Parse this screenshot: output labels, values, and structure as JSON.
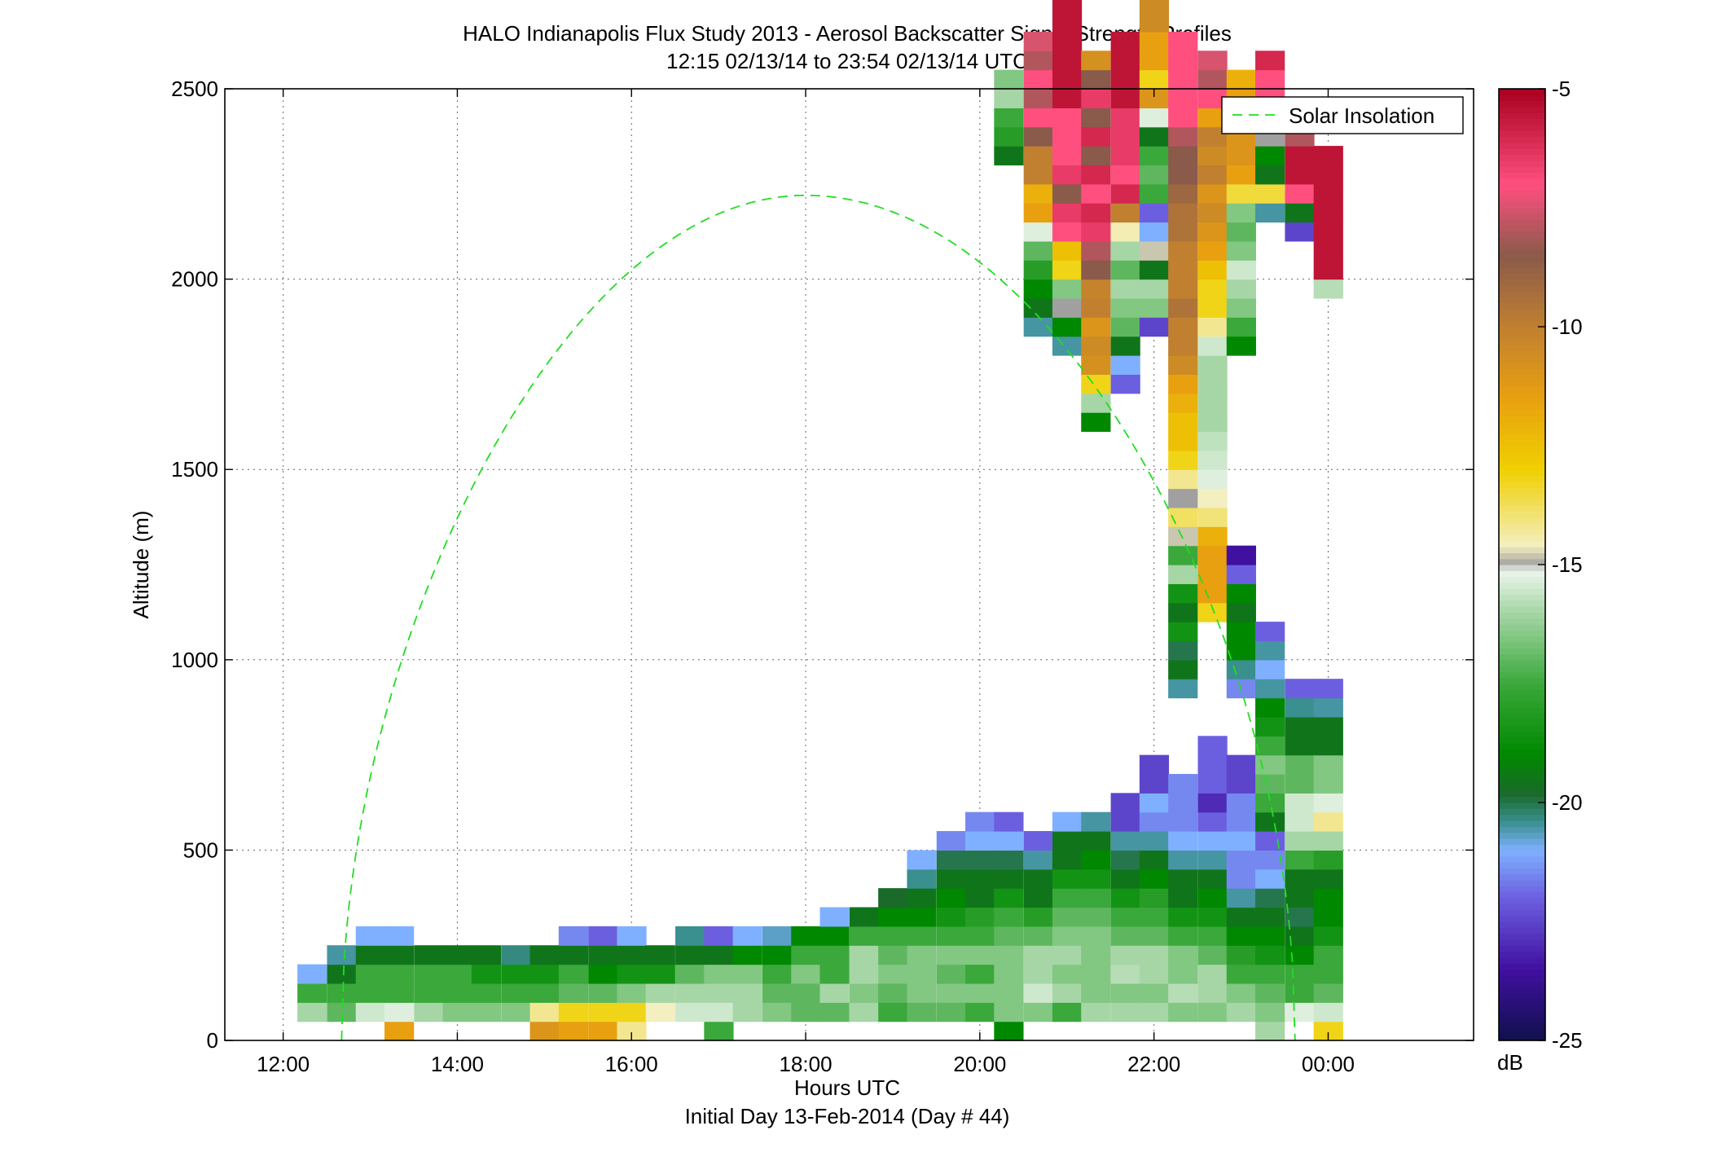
{
  "chart_data": {
    "type": "heatmap",
    "title": "HALO Indianapolis Flux Study 2013 - Aerosol Backscatter Signal Strength Profiles",
    "subtitle": "12:15 02/13/14 to 23:54 02/13/14  UTC",
    "xlabel": "Hours UTC",
    "xlabel2": "Initial Day 13-Feb-2014 (Day # 44)",
    "ylabel": "Altitude (m)",
    "x_range_hours": [
      11.33,
      25.67
    ],
    "ylim": [
      0,
      2500
    ],
    "x_ticks": [
      {
        "value": 12,
        "label": "12:00"
      },
      {
        "value": 14,
        "label": "14:00"
      },
      {
        "value": 16,
        "label": "16:00"
      },
      {
        "value": 18,
        "label": "18:00"
      },
      {
        "value": 20,
        "label": "20:00"
      },
      {
        "value": 22,
        "label": "22:00"
      },
      {
        "value": 24,
        "label": "00:00"
      }
    ],
    "y_ticks": [
      {
        "value": 0,
        "label": "0"
      },
      {
        "value": 500,
        "label": "500"
      },
      {
        "value": 1000,
        "label": "1000"
      },
      {
        "value": 1500,
        "label": "1500"
      },
      {
        "value": 2000,
        "label": "2000"
      },
      {
        "value": 2500,
        "label": "2500"
      }
    ],
    "grid": true,
    "grid_style": "dotted",
    "legend": {
      "placement": "top-right",
      "entries": [
        {
          "label": "Solar Insolation",
          "color": "#22dd22",
          "style": "dashed"
        }
      ]
    },
    "colorbar": {
      "unit": "dB",
      "range": [
        -25,
        -5
      ],
      "ticks": [
        {
          "value": -5,
          "label": "-5"
        },
        {
          "value": -10,
          "label": "-10"
        },
        {
          "value": -15,
          "label": "-15"
        },
        {
          "value": -20,
          "label": "-20"
        },
        {
          "value": -25,
          "label": "-25"
        }
      ],
      "stops": [
        {
          "value": -25,
          "color": "#10104a"
        },
        {
          "value": -23.5,
          "color": "#4010a0"
        },
        {
          "value": -22,
          "color": "#6b5fe0"
        },
        {
          "value": -21,
          "color": "#7fb0ff"
        },
        {
          "value": -20.4,
          "color": "#3a8f8f"
        },
        {
          "value": -19.8,
          "color": "#1a6a2a"
        },
        {
          "value": -19,
          "color": "#008800"
        },
        {
          "value": -17.5,
          "color": "#3aa83a"
        },
        {
          "value": -16,
          "color": "#a6d6a6"
        },
        {
          "value": -15.1,
          "color": "#eef6ee"
        },
        {
          "value": -15,
          "color": "#a0a0a0"
        },
        {
          "value": -14.6,
          "color": "#f3efc0"
        },
        {
          "value": -13,
          "color": "#f0d000"
        },
        {
          "value": -11.5,
          "color": "#e8a010"
        },
        {
          "value": -10,
          "color": "#c08030"
        },
        {
          "value": -8.5,
          "color": "#8a5a4a"
        },
        {
          "value": -7,
          "color": "#ff4f7f"
        },
        {
          "value": -5,
          "color": "#a8001e"
        }
      ]
    },
    "cell_height_m": 50,
    "cell_width_hours": 0.333,
    "solar_insolation": {
      "name": "Solar Insolation",
      "peak_time_hours": 18.0,
      "peak_altitude_m": 2220,
      "zero_crossings_hours": [
        12.67,
        23.62
      ],
      "curve_exponent": 1.5
    },
    "columns": [
      {
        "t": 12.33,
        "start": 100,
        "v": [
          -16,
          -17.5,
          -21
        ]
      },
      {
        "t": 12.67,
        "start": 100,
        "v": [
          -17,
          -17.5,
          -19.5,
          -20.5
        ]
      },
      {
        "t": 13.0,
        "start": 100,
        "v": [
          -15.5,
          -17.5,
          -17.5,
          -19.5,
          -21
        ]
      },
      {
        "t": 13.33,
        "start": 50,
        "v": [
          -11.5,
          -15.3,
          -17.5,
          -17.5,
          -19.5,
          -21
        ]
      },
      {
        "t": 13.67,
        "start": 100,
        "v": [
          -16,
          -17.5,
          -17.5,
          -19.5
        ]
      },
      {
        "t": 14.0,
        "start": 100,
        "v": [
          -16.5,
          -17.5,
          -17.5,
          -19.5
        ]
      },
      {
        "t": 14.33,
        "start": 100,
        "v": [
          -16.5,
          -17.5,
          -18.5,
          -19.5
        ]
      },
      {
        "t": 14.67,
        "start": 100,
        "v": [
          -16.5,
          -17.5,
          -18.5,
          -20.3
        ]
      },
      {
        "t": 15.0,
        "start": 50,
        "v": [
          -11,
          -14.2,
          -17.5,
          -18.5,
          -19.5
        ]
      },
      {
        "t": 15.33,
        "start": 50,
        "v": [
          -11.5,
          -13.2,
          -17,
          -17.5,
          -19.5,
          -21.5
        ]
      },
      {
        "t": 15.67,
        "start": 50,
        "v": [
          -11.5,
          -13.2,
          -17,
          -19,
          -19.5,
          -22
        ]
      },
      {
        "t": 16.0,
        "start": 50,
        "v": [
          -14.2,
          -13.2,
          -16.5,
          -18.5,
          -19.5,
          -21
        ]
      },
      {
        "t": 16.33,
        "start": 100,
        "v": [
          -14.6,
          -16,
          -18.5,
          -19.5
        ]
      },
      {
        "t": 16.67,
        "start": 100,
        "v": [
          -15.5,
          -16,
          -17,
          -19.5,
          -20.4
        ]
      },
      {
        "t": 17.0,
        "start": 50,
        "v": [
          -17.5,
          -15.5,
          -16,
          -16.5,
          -19.5,
          -22
        ]
      },
      {
        "t": 17.33,
        "start": 100,
        "v": [
          -16,
          -16,
          -16.5,
          -19,
          -21
        ]
      },
      {
        "t": 17.67,
        "start": 100,
        "v": [
          -16.5,
          -17,
          -17.5,
          -19,
          -20.7
        ]
      },
      {
        "t": 18.0,
        "start": 100,
        "v": [
          -17,
          -17,
          -16.5,
          -17.5,
          -19
        ]
      },
      {
        "t": 18.33,
        "start": 100,
        "v": [
          -17,
          -16,
          -17.5,
          -17.5,
          -19,
          -21
        ]
      },
      {
        "t": 18.67,
        "start": 100,
        "v": [
          -16,
          -16.5,
          -16,
          -16,
          -17.5,
          -19.5
        ]
      },
      {
        "t": 19.0,
        "start": 100,
        "v": [
          -17.5,
          -17,
          -16.5,
          -17,
          -17.5,
          -19,
          -19.8
        ]
      },
      {
        "t": 19.33,
        "start": 100,
        "v": [
          -17,
          -16.5,
          -16.5,
          -16.5,
          -17.5,
          -19,
          -19.5,
          -20.4,
          -21
        ]
      },
      {
        "t": 19.67,
        "start": 100,
        "v": [
          -17,
          -16.5,
          -17,
          -16.5,
          -17.5,
          -18.5,
          -19,
          -19.5,
          -20,
          -21.5
        ]
      },
      {
        "t": 20.0,
        "start": 100,
        "v": [
          -17.5,
          -16.5,
          -17.5,
          -16.5,
          -17.5,
          -18,
          -19.5,
          -19.5,
          -20,
          -21,
          -21.5
        ]
      },
      {
        "t": 20.33,
        "start": 50,
        "v": [
          -19,
          -16.5,
          -16.5,
          -16.5,
          -16.5,
          -17,
          -17.5,
          -18.5,
          -19.5,
          -20,
          -21,
          -22
        ],
        "upper_start": 2300,
        "upper": [
          -19.5,
          -18,
          -17.5,
          -16,
          -16.5
        ]
      },
      {
        "t": 20.67,
        "start": 100,
        "v": [
          -16.5,
          -15.5,
          -16,
          -16,
          -17,
          -18,
          -19.5,
          -19.5,
          -20.5,
          -22
        ],
        "upper_start": 1850,
        "upper": [
          -20.5,
          -19.5,
          -19,
          -18,
          -17,
          -15.3,
          -11.5,
          -12,
          -10,
          -10,
          -8.5,
          -7,
          -8,
          -7,
          -8,
          -7.5
        ]
      },
      {
        "t": 21.0,
        "start": 100,
        "v": [
          -17.5,
          -16,
          -16.5,
          -16,
          -16.5,
          -17,
          -17.5,
          -18.5,
          -19.5,
          -19.5,
          -21
        ],
        "upper_start": 1800,
        "upper": [
          -20.5,
          -19,
          -15,
          -16.5,
          -13.2,
          -12.5,
          -7,
          -6.5,
          -8.5,
          -6.5,
          -7,
          -7,
          -7,
          -5.5,
          -5.5,
          -5.5,
          -5.5,
          -5.5,
          -5.5,
          -5.5
        ]
      },
      {
        "t": 21.33,
        "start": 100,
        "v": [
          -16,
          -16.5,
          -16.5,
          -16.5,
          -16.5,
          -17,
          -17.5,
          -18.5,
          -19,
          -19.5,
          -20.5
        ],
        "upper_start": 1600,
        "upper": [
          -19,
          -16,
          -13.2,
          -10.8,
          -10.5,
          -11,
          -10,
          -10.2,
          -8.5,
          -8,
          -6.5,
          -6,
          -7,
          -6,
          -8.5,
          -6,
          -8.5,
          -6.5,
          -8.5,
          -10.8
        ]
      },
      {
        "t": 21.67,
        "start": 100,
        "v": [
          -16,
          -16.5,
          -15.8,
          -16,
          -17,
          -17.5,
          -18.5,
          -19.5,
          -20,
          -20.5,
          -22.5,
          -22.5
        ],
        "upper_start": 1700,
        "upper": [
          -22,
          -21,
          -19.5,
          -17,
          -16.5,
          -16,
          -17,
          -16,
          -14.5,
          -10,
          -6,
          -7,
          -6.5,
          -6.5,
          -6.5,
          -5.5,
          -5.5,
          -5.5,
          -5.5
        ]
      },
      {
        "t": 22.0,
        "start": 100,
        "v": [
          -16,
          -16.5,
          -16,
          -16,
          -17,
          -17.5,
          -18,
          -19,
          -19.5,
          -20.5,
          -21.5,
          -21,
          -22.5,
          -22.5
        ],
        "upper_start": 1850,
        "upper": [
          -22.5,
          -16.5,
          -16,
          -19.5,
          -14.8,
          -21,
          -22,
          -17.5,
          -17,
          -17.5,
          -19.5,
          -15.3,
          -11,
          -13.2,
          -11.5,
          -11.5,
          -10.5,
          -10.5,
          -11.5
        ]
      },
      {
        "t": 22.33,
        "start": 100,
        "v": [
          -16.5,
          -15.8,
          -16.5,
          -16.5,
          -17.5,
          -18.5,
          -19.5,
          -19.5,
          -20.5,
          -21,
          -21.5,
          -21.5,
          -21.5
        ],
        "upper_start": 900,
        "upper": [
          -20.5,
          -19.5,
          -20,
          -18.5,
          -19.5,
          -18.5,
          -16,
          -17.5,
          -14.8,
          -13.8,
          -15,
          -14.2,
          -13.2,
          -12.5,
          -12.5,
          -12,
          -11.5,
          -10.5,
          -10,
          -10,
          -9.5,
          -10,
          -10,
          -10,
          -9.5,
          -9.5,
          -9,
          -8.5,
          -8.5,
          -8,
          -7,
          -7,
          -7,
          -7,
          -7
        ]
      },
      {
        "t": 22.67,
        "start": 100,
        "v": [
          -16.5,
          -16,
          -16,
          -17,
          -17.5,
          -18.5,
          -19,
          -19.5,
          -20.5,
          -21,
          -22,
          -23,
          -22,
          -22,
          -22
        ],
        "upper_start": 1100,
        "upper": [
          -13.2,
          -11.5,
          -11.5,
          -11.5,
          -12,
          -14,
          -14.6,
          -15.3,
          -15.5,
          -15.7,
          -16,
          -16,
          -16,
          -16,
          -15.5,
          -14.2,
          -13.2,
          -13.2,
          -12.5,
          -11.5,
          -11,
          -10.5,
          -11,
          -10,
          -10.5,
          -10,
          -11.5,
          -7,
          -8,
          -7.5
        ]
      },
      {
        "t": 23.0,
        "start": 100,
        "v": [
          -16,
          -16.5,
          -17.5,
          -18,
          -19,
          -19.5,
          -20.5,
          -21.5,
          -21.5,
          -21,
          -21.5,
          -21.5,
          -22.5,
          -22.5
        ],
        "upper_start": 900,
        "upper": [
          -21.5,
          -20.4,
          -19,
          -19,
          -19.5,
          -19,
          -22,
          -23.5
        ],
        "upper2_start": 1800,
        "upper2": [
          -19,
          -17.5,
          -16.5,
          -16,
          -15.5,
          -16.5,
          -17,
          -16.5,
          -13.5,
          -11.5,
          -11,
          -11,
          -11,
          -11.5,
          -12
        ]
      },
      {
        "t": 23.33,
        "start": 50,
        "v": [
          -16,
          -16.5,
          -17,
          -17.5,
          -18.5,
          -19,
          -19.5,
          -20,
          -21,
          -21.5,
          -22,
          -19.5,
          -17.5,
          -17,
          -16.5,
          -17.5,
          -18.5,
          -19,
          -20.5,
          -21,
          -20.5,
          -22
        ],
        "upper_start": 2150,
        "upper": [
          -20.5,
          -13.5,
          -19.5,
          -19,
          -15,
          -7.5,
          -7,
          -7,
          -6
        ]
      },
      {
        "t": 23.67,
        "start": 100,
        "v": [
          -15.3,
          -17.5,
          -17.5,
          -19,
          -19.5,
          -20,
          -19.5,
          -19.5,
          -17.5,
          -16,
          -15.5,
          -15.5,
          -17,
          -17,
          -19.5,
          -19.5,
          -20.4,
          -22
        ],
        "upper_start": 2100,
        "upper": [
          -22.5,
          -19.5,
          -7,
          -5.5,
          -5.5,
          -8
        ]
      },
      {
        "t": 24.0,
        "start": 50,
        "v": [
          -13.2,
          -15.5,
          -17,
          -17.5,
          -17.5,
          -18.5,
          -19,
          -19,
          -19.5,
          -18,
          -16,
          -14.2,
          -15.3,
          -16.5,
          -16.5,
          -19.5,
          -19.5,
          -20.5,
          -22
        ],
        "upper_start": 1950,
        "upper": [
          -15.8,
          -5.5,
          -5.5,
          -5.5,
          -5.5,
          -5.5,
          -5.5,
          -5.5
        ]
      }
    ]
  }
}
